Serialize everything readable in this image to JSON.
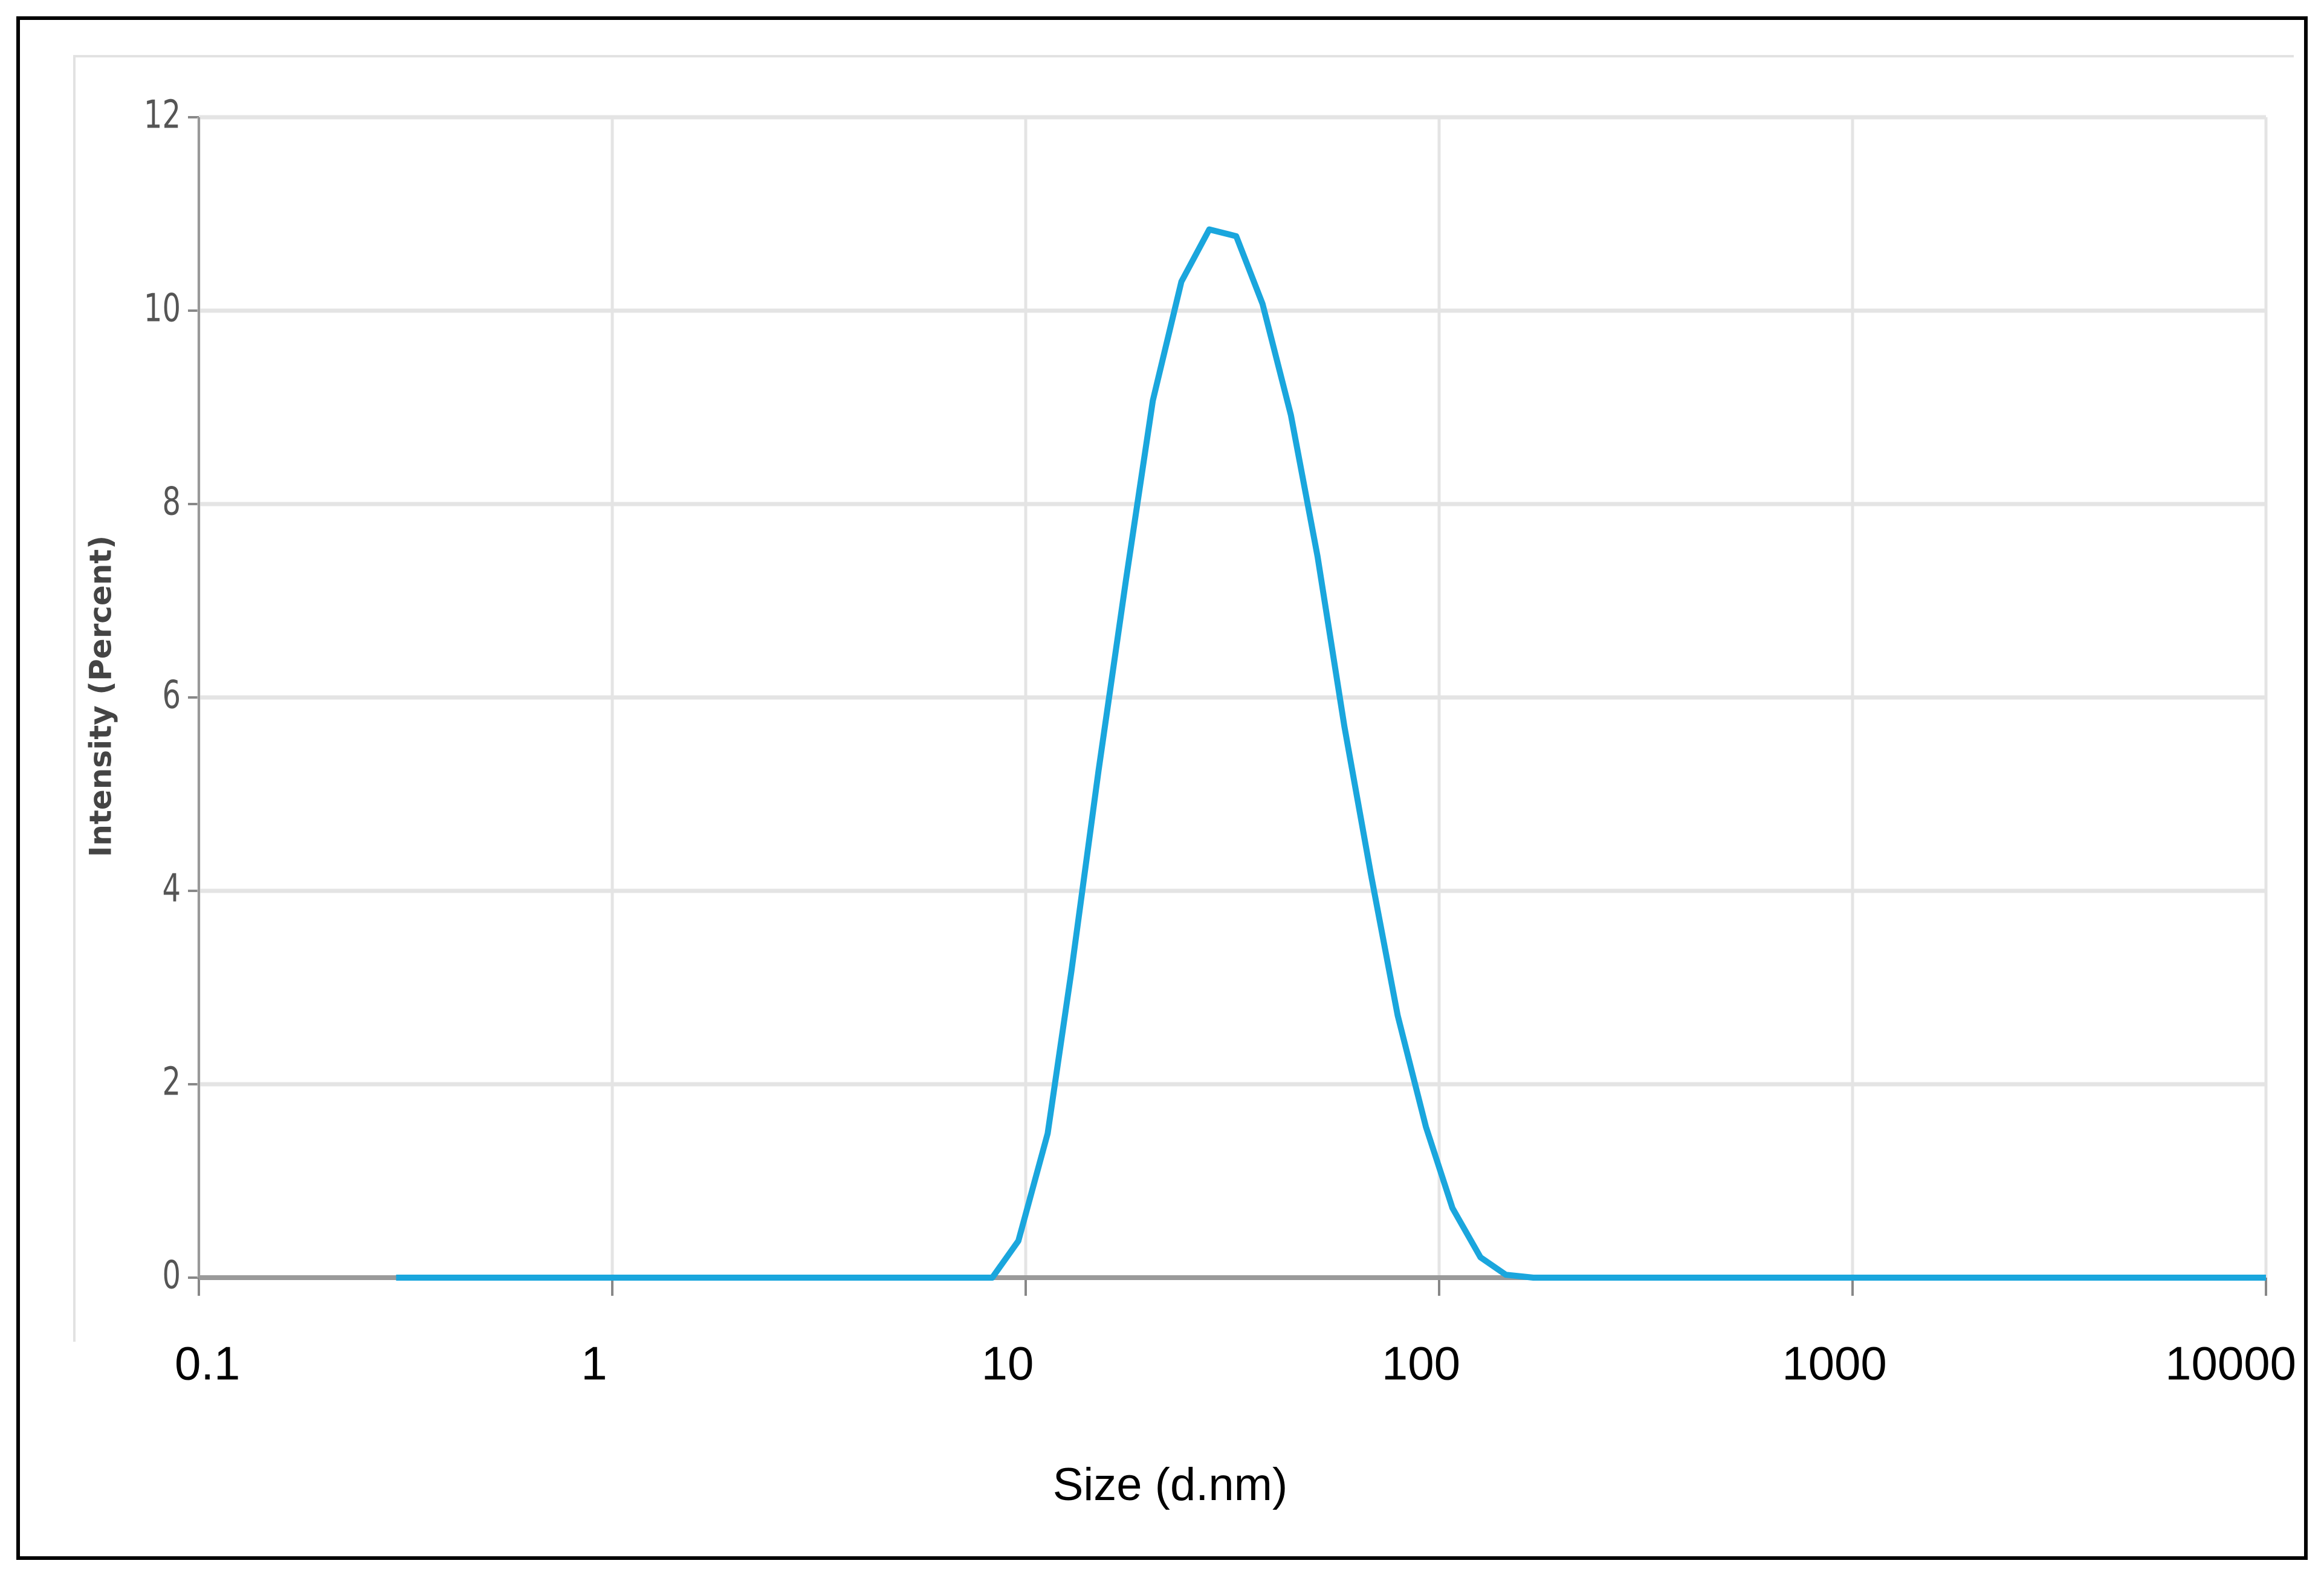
{
  "chart_data": {
    "type": "line",
    "xlabel": "Size (d.nm)",
    "ylabel": "Intensity (Percent)",
    "xscale": "log",
    "grid": true,
    "xlim": [
      0.1,
      10000
    ],
    "xticks": [
      0.1,
      1,
      10,
      100,
      1000,
      10000
    ],
    "ylim": [
      0,
      12
    ],
    "yticks": [
      0,
      2,
      4,
      6,
      8,
      10,
      12
    ],
    "x": [
      0.3,
      8.3,
      9.6,
      11.3,
      12.9,
      15.0,
      17.5,
      20.3,
      23.8,
      27.8,
      32.3,
      37.4,
      43.8,
      50.8,
      59.0,
      68.4,
      79.4,
      92.9,
      107.7,
      125.9,
      145,
      169,
      10000
    ],
    "series": [
      {
        "color": "#1aa6dd",
        "values": [
          0,
          0,
          0.38,
          1.49,
          3.17,
          5.24,
          7.23,
          9.07,
          10.3,
          10.84,
          10.77,
          10.07,
          8.92,
          7.46,
          5.7,
          4.17,
          2.71,
          1.56,
          0.72,
          0.21,
          0.03,
          0,
          0
        ]
      }
    ]
  }
}
